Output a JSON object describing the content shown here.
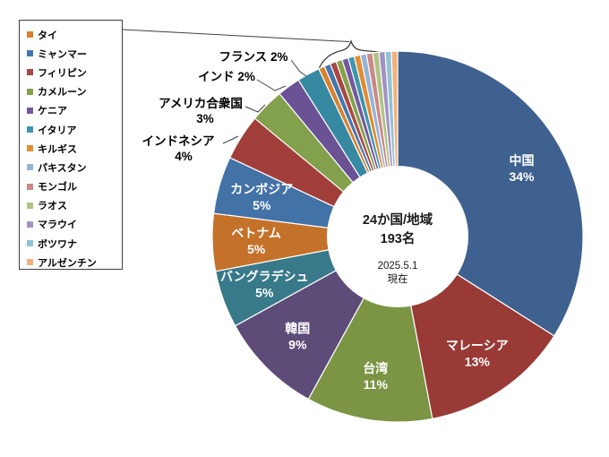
{
  "chart_data": {
    "type": "pie",
    "subtype": "donut",
    "title": "",
    "direction": "clockwise",
    "start_angle_deg": 0,
    "legend_position": "top-left",
    "center_label": {
      "line1": "24か国/地域",
      "line2": "193名",
      "line3": "2025.5.1",
      "line4": "現在"
    },
    "slices": [
      {
        "name": "中国",
        "pct_label": "34%",
        "weight": 34,
        "color": "#3F618F",
        "label": "inside"
      },
      {
        "name": "マレーシア",
        "pct_label": "13%",
        "weight": 13,
        "color": "#993A36",
        "label": "inside"
      },
      {
        "name": "台湾",
        "pct_label": "11%",
        "weight": 11,
        "color": "#7B9544",
        "label": "inside"
      },
      {
        "name": "韓国",
        "pct_label": "9%",
        "weight": 9,
        "color": "#5D4B78",
        "label": "inside"
      },
      {
        "name": "バングラデシュ",
        "pct_label": "5%",
        "weight": 5,
        "color": "#38798A",
        "label": "inside"
      },
      {
        "name": "ベトナム",
        "pct_label": "5%",
        "weight": 5,
        "color": "#C4712A",
        "label": "inside"
      },
      {
        "name": "カンボジア",
        "pct_label": "5%",
        "weight": 5,
        "color": "#4272A6",
        "label": "inside"
      },
      {
        "name": "インドネシア",
        "pct_label": "4%",
        "weight": 4,
        "color": "#A23E3A",
        "label": "callout"
      },
      {
        "name": "アメリカ合衆国",
        "pct_label": "3%",
        "weight": 3,
        "color": "#83A04C",
        "label": "callout"
      },
      {
        "name": "インド",
        "pct_label": "2%",
        "weight": 2,
        "color": "#6B5295",
        "label": "callout"
      },
      {
        "name": "フランス",
        "pct_label": "2%",
        "weight": 2,
        "color": "#3789A2",
        "label": "callout"
      },
      {
        "name": "タイ",
        "pct_label": null,
        "weight": 0.5385,
        "color": "#D9812F",
        "label": "legend"
      },
      {
        "name": "ミャンマー",
        "pct_label": null,
        "weight": 0.5385,
        "color": "#4577AE",
        "label": "legend"
      },
      {
        "name": "フィリピン",
        "pct_label": null,
        "weight": 0.5385,
        "color": "#A84743",
        "label": "legend"
      },
      {
        "name": "カメルーン",
        "pct_label": null,
        "weight": 0.5385,
        "color": "#85A04B",
        "label": "legend"
      },
      {
        "name": "ケニア",
        "pct_label": null,
        "weight": 0.5385,
        "color": "#75599E",
        "label": "legend"
      },
      {
        "name": "イタリア",
        "pct_label": null,
        "weight": 0.5385,
        "color": "#3E96AC",
        "label": "legend"
      },
      {
        "name": "キルギス",
        "pct_label": null,
        "weight": 0.5385,
        "color": "#E28C33",
        "label": "legend"
      },
      {
        "name": "パキスタン",
        "pct_label": null,
        "weight": 0.5385,
        "color": "#95B3D7",
        "label": "legend"
      },
      {
        "name": "モンゴル",
        "pct_label": null,
        "weight": 0.5385,
        "color": "#C98A86",
        "label": "legend"
      },
      {
        "name": "ラオス",
        "pct_label": null,
        "weight": 0.5385,
        "color": "#AFC284",
        "label": "legend"
      },
      {
        "name": "マラウイ",
        "pct_label": null,
        "weight": 0.5385,
        "color": "#A191C4",
        "label": "legend"
      },
      {
        "name": "ボツワナ",
        "pct_label": null,
        "weight": 0.5385,
        "color": "#8EC3D8",
        "label": "legend"
      },
      {
        "name": "アルゼンチン",
        "pct_label": null,
        "weight": 0.5385,
        "color": "#F4B179",
        "label": "legend"
      }
    ]
  }
}
